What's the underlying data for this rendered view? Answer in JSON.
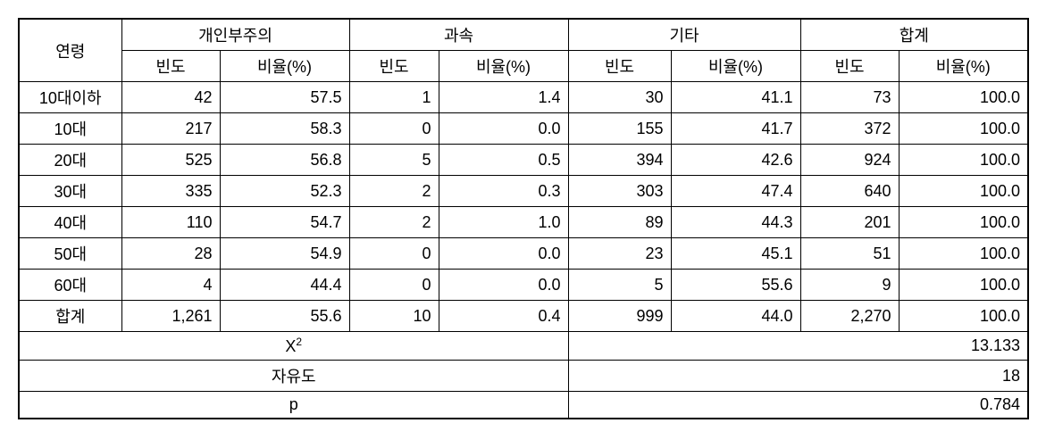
{
  "headers": {
    "rowLabel": "연령",
    "groups": [
      {
        "label": "개인부주의",
        "sub1": "빈도",
        "sub2": "비율(%)"
      },
      {
        "label": "과속",
        "sub1": "빈도",
        "sub2": "비율(%)"
      },
      {
        "label": "기타",
        "sub1": "빈도",
        "sub2": "비율(%)"
      },
      {
        "label": "합계",
        "sub1": "빈도",
        "sub2": "비율(%)"
      }
    ]
  },
  "rows": [
    {
      "label": "10대이하",
      "v": [
        "42",
        "57.5",
        "1",
        "1.4",
        "30",
        "41.1",
        "73",
        "100.0"
      ]
    },
    {
      "label": "10대",
      "v": [
        "217",
        "58.3",
        "0",
        "0.0",
        "155",
        "41.7",
        "372",
        "100.0"
      ]
    },
    {
      "label": "20대",
      "v": [
        "525",
        "56.8",
        "5",
        "0.5",
        "394",
        "42.6",
        "924",
        "100.0"
      ]
    },
    {
      "label": "30대",
      "v": [
        "335",
        "52.3",
        "2",
        "0.3",
        "303",
        "47.4",
        "640",
        "100.0"
      ]
    },
    {
      "label": "40대",
      "v": [
        "110",
        "54.7",
        "2",
        "1.0",
        "89",
        "44.3",
        "201",
        "100.0"
      ]
    },
    {
      "label": "50대",
      "v": [
        "28",
        "54.9",
        "0",
        "0.0",
        "23",
        "45.1",
        "51",
        "100.0"
      ]
    },
    {
      "label": "60대",
      "v": [
        "4",
        "44.4",
        "0",
        "0.0",
        "5",
        "55.6",
        "9",
        "100.0"
      ]
    },
    {
      "label": "합계",
      "v": [
        "1,261",
        "55.6",
        "10",
        "0.4",
        "999",
        "44.0",
        "2,270",
        "100.0"
      ]
    }
  ],
  "stats": [
    {
      "label": "X",
      "sup": "2",
      "value": "13.133"
    },
    {
      "label": "자유도",
      "sup": "",
      "value": "18"
    },
    {
      "label": "p",
      "sup": "",
      "value": "0.784"
    }
  ]
}
